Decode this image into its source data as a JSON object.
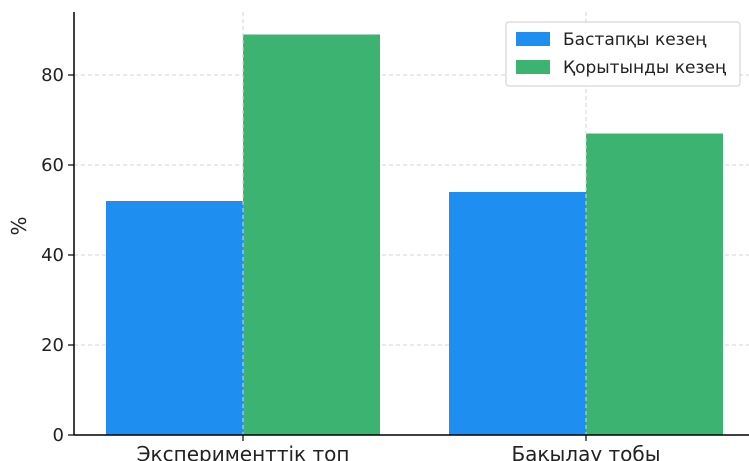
{
  "chart_data": {
    "type": "bar",
    "title": "",
    "xlabel": "",
    "ylabel": "%",
    "ylim": [
      0,
      93
    ],
    "yticks": [
      0,
      20,
      40,
      60,
      80
    ],
    "categories": [
      "Эксперименттік топ",
      "Бақылау тобы"
    ],
    "series": [
      {
        "name": "Бастапқы кезең",
        "color": "#1f8ef1",
        "values": [
          52,
          54
        ]
      },
      {
        "name": "Қорытынды кезең",
        "color": "#3cb371",
        "values": [
          89,
          67
        ]
      }
    ],
    "grid": true,
    "legend_position": "top-right"
  }
}
